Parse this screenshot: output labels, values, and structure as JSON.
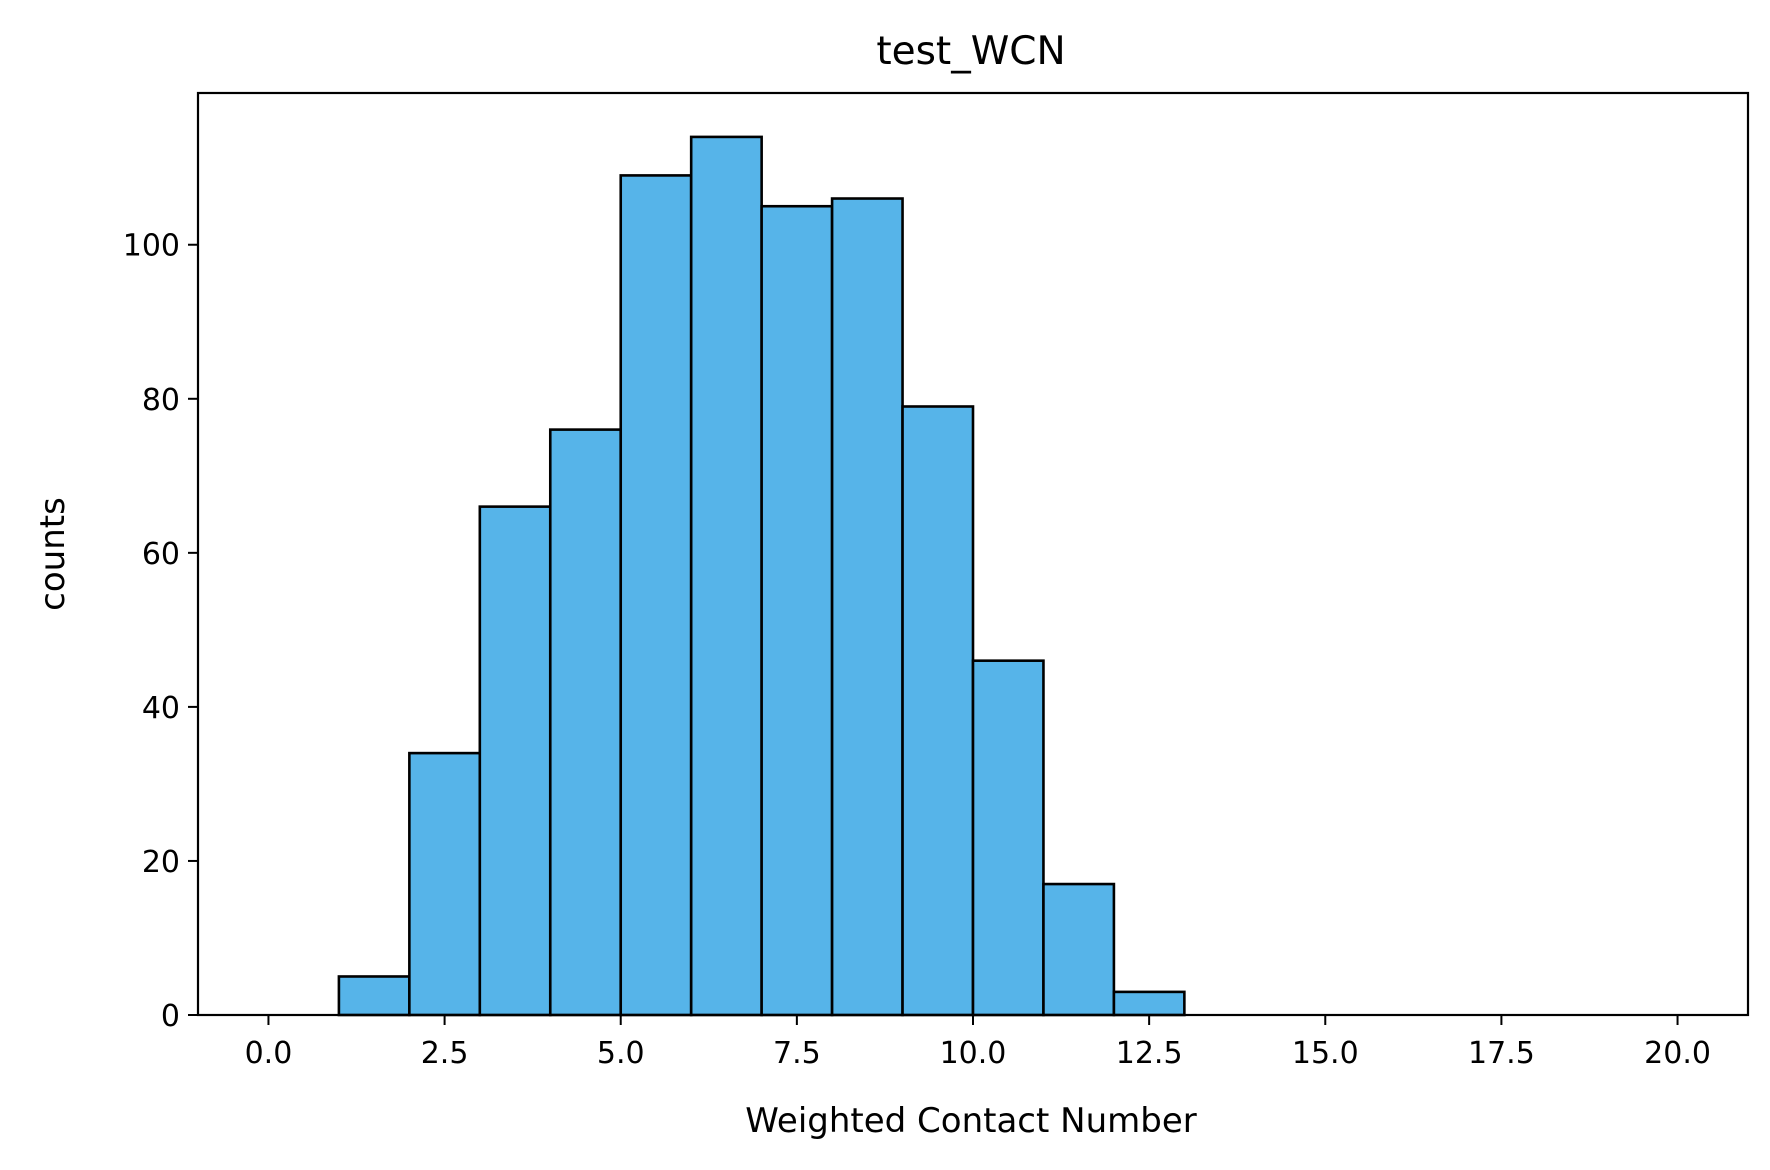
{
  "chart_data": {
    "type": "bar",
    "title": "test_WCN",
    "xlabel": "Weighted Contact Number",
    "ylabel": "counts",
    "bin_edges": [
      0,
      1,
      2,
      3,
      4,
      5,
      6,
      7,
      8,
      9,
      10,
      11,
      12,
      13,
      14,
      15,
      16,
      17,
      18,
      19,
      20
    ],
    "values": [
      0,
      5,
      34,
      66,
      76,
      109,
      114,
      105,
      106,
      79,
      46,
      17,
      3,
      0,
      0,
      0,
      0,
      0,
      0,
      0
    ],
    "xlim": [
      -1,
      21
    ],
    "ylim": [
      0,
      119.7
    ],
    "xticks": [
      0.0,
      2.5,
      5.0,
      7.5,
      10.0,
      12.5,
      15.0,
      17.5,
      20.0
    ],
    "xtick_labels": [
      "0.0",
      "2.5",
      "5.0",
      "7.5",
      "10.0",
      "12.5",
      "15.0",
      "17.5",
      "20.0"
    ],
    "yticks": [
      0,
      20,
      40,
      60,
      80,
      100
    ],
    "ytick_labels": [
      "0",
      "20",
      "40",
      "60",
      "80",
      "100"
    ],
    "bar_color": "#56B4E9",
    "edge_color": "#000000",
    "grid": false,
    "legend": false
  }
}
